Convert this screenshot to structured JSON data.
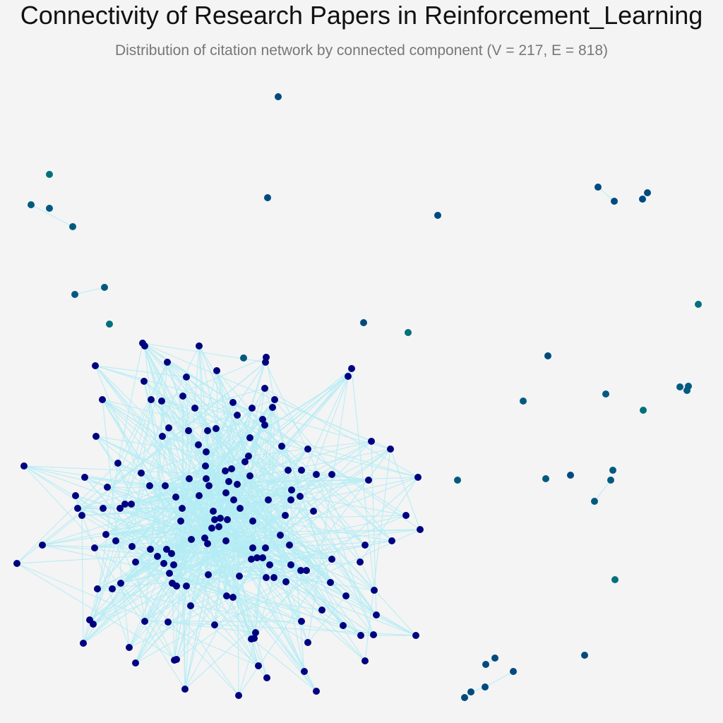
{
  "title": "Connectivity of Research Papers in Reinforcement_Learning",
  "subtitle": "Distribution of citation network by connected component (V = 217, E = 818)",
  "colors": {
    "background": "#f4f4f4",
    "edge": "#b4ecf4",
    "node_main": "#000080",
    "node_dark_blue": "#004a80",
    "node_mid": "#005a80",
    "node_teal": "#00707c"
  }
}
